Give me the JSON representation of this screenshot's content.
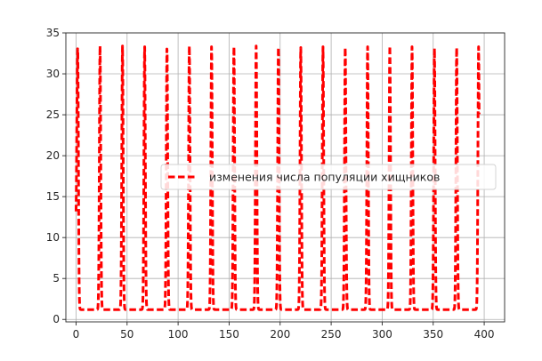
{
  "chart_data": {
    "type": "line",
    "title": "",
    "xlabel": "",
    "ylabel": "",
    "xlim": [
      -10,
      420
    ],
    "ylim": [
      -0.3,
      35
    ],
    "grid": true,
    "legend": {
      "placement": "center-right"
    },
    "x_ticks": [
      0,
      50,
      100,
      150,
      200,
      250,
      300,
      350,
      400
    ],
    "y_ticks": [
      0,
      5,
      10,
      15,
      20,
      25,
      30,
      35
    ],
    "series": [
      {
        "name": "изменения числа популяции хищников",
        "color": "#ff0000",
        "style": "dashed",
        "x_range": [
          0,
          395
        ],
        "start_value": 13.2,
        "peaks": [
          {
            "x": 1.6,
            "y": 33.2
          },
          {
            "x": 23.5,
            "y": 33.4
          },
          {
            "x": 45.5,
            "y": 33.2
          },
          {
            "x": 67.2,
            "y": 33.4
          },
          {
            "x": 89.1,
            "y": 33.3
          },
          {
            "x": 111.0,
            "y": 33.4
          },
          {
            "x": 132.8,
            "y": 33.3
          },
          {
            "x": 154.7,
            "y": 33.4
          },
          {
            "x": 176.5,
            "y": 33.3
          },
          {
            "x": 198.3,
            "y": 33.3
          },
          {
            "x": 220.2,
            "y": 33.3
          },
          {
            "x": 242.0,
            "y": 33.3
          },
          {
            "x": 263.8,
            "y": 33.2
          },
          {
            "x": 285.7,
            "y": 33.1
          },
          {
            "x": 307.5,
            "y": 33.4
          },
          {
            "x": 329.3,
            "y": 33.2
          },
          {
            "x": 351.2,
            "y": 33.2
          },
          {
            "x": 373.0,
            "y": 33.1
          },
          {
            "x": 394.5,
            "y": 33.3
          }
        ],
        "trough_value": 1.2
      }
    ]
  }
}
